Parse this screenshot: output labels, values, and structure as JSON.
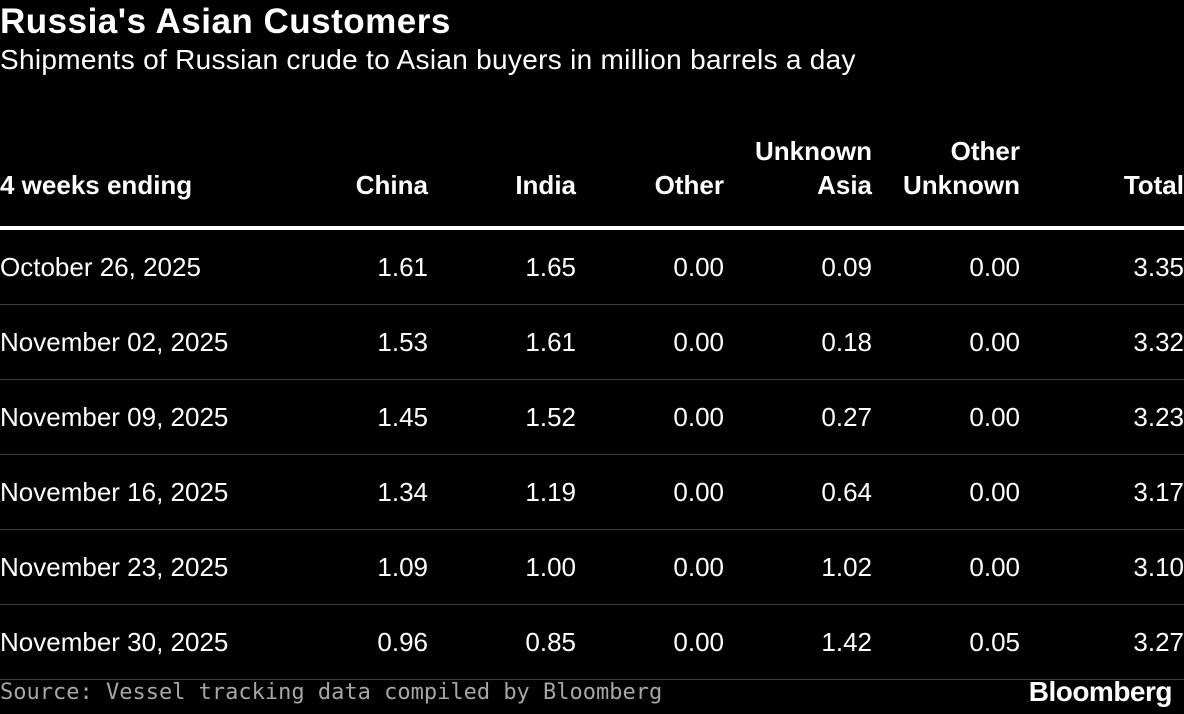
{
  "title": "Russia's Asian Customers",
  "subtitle": "Shipments of Russian crude to Asian buyers in million barrels a day",
  "columns": [
    {
      "lines": [
        "4 weeks ending"
      ]
    },
    {
      "lines": [
        "China"
      ]
    },
    {
      "lines": [
        "India"
      ]
    },
    {
      "lines": [
        "Other"
      ]
    },
    {
      "lines": [
        "Unknown",
        "Asia"
      ]
    },
    {
      "lines": [
        "Other",
        "Unknown"
      ]
    },
    {
      "lines": [
        "Total"
      ]
    }
  ],
  "rows": [
    [
      "October 26, 2025",
      "1.61",
      "1.65",
      "0.00",
      "0.09",
      "0.00",
      "3.35"
    ],
    [
      "November 02, 2025",
      "1.53",
      "1.61",
      "0.00",
      "0.18",
      "0.00",
      "3.32"
    ],
    [
      "November 09, 2025",
      "1.45",
      "1.52",
      "0.00",
      "0.27",
      "0.00",
      "3.23"
    ],
    [
      "November 16, 2025",
      "1.34",
      "1.19",
      "0.00",
      "0.64",
      "0.00",
      "3.17"
    ],
    [
      "November 23, 2025",
      "1.09",
      "1.00",
      "0.00",
      "1.02",
      "0.00",
      "3.10"
    ],
    [
      "November 30, 2025",
      "0.96",
      "0.85",
      "0.00",
      "1.42",
      "0.05",
      "3.27"
    ]
  ],
  "source": "Source: Vessel tracking data compiled by Bloomberg",
  "brand": "Bloomberg",
  "colors": {
    "background": "#000000",
    "text": "#ffffff",
    "muted": "#a6a6a6",
    "divider": "#3a3a3a"
  },
  "chart_data": {
    "type": "table",
    "title": "Russia's Asian Customers",
    "subtitle": "Shipments of Russian crude to Asian buyers in million barrels a day",
    "headers": [
      "4 weeks ending",
      "China",
      "India",
      "Other",
      "Unknown Asia",
      "Other Unknown",
      "Total"
    ],
    "rows": [
      [
        "October 26, 2025",
        1.61,
        1.65,
        0.0,
        0.09,
        0.0,
        3.35
      ],
      [
        "November 02, 2025",
        1.53,
        1.61,
        0.0,
        0.18,
        0.0,
        3.32
      ],
      [
        "November 09, 2025",
        1.45,
        1.52,
        0.0,
        0.27,
        0.0,
        3.23
      ],
      [
        "November 16, 2025",
        1.34,
        1.19,
        0.0,
        0.64,
        0.0,
        3.17
      ],
      [
        "November 23, 2025",
        1.09,
        1.0,
        0.0,
        1.02,
        0.0,
        3.1
      ],
      [
        "November 30, 2025",
        0.96,
        0.85,
        0.0,
        1.42,
        0.05,
        3.27
      ]
    ],
    "source": "Source: Vessel tracking data compiled by Bloomberg"
  }
}
